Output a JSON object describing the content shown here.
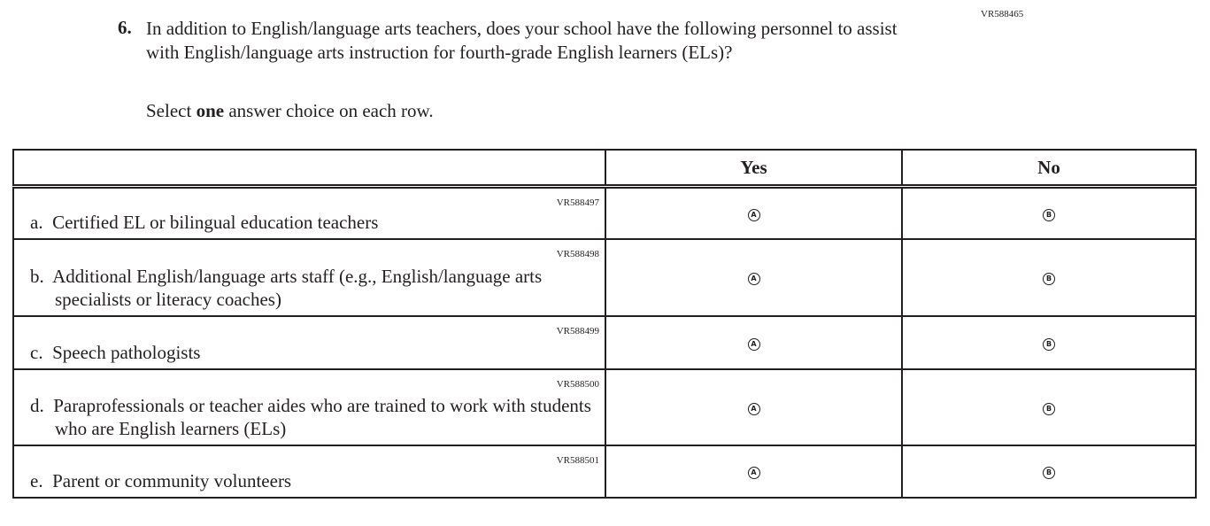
{
  "question": {
    "id": "VR588465",
    "number": "6.",
    "text": "In addition to English/language arts teachers, does your school have the following personnel to assist with English/language arts instruction for fourth-grade English learners (ELs)?",
    "instruction_pre": "Select ",
    "instruction_bold": "one",
    "instruction_post": " answer choice on each row."
  },
  "columns": {
    "yes": "Yes",
    "no": "No"
  },
  "rows": [
    {
      "id": "VR588497",
      "letter": "a.",
      "text": "Certified EL or bilingual education teachers",
      "yes": "A",
      "no": "B"
    },
    {
      "id": "VR588498",
      "letter": "b.",
      "text": "Additional English/language arts staff (e.g., English/language arts specialists or literacy coaches)",
      "yes": "A",
      "no": "B"
    },
    {
      "id": "VR588499",
      "letter": "c.",
      "text": "Speech pathologists",
      "yes": "A",
      "no": "B"
    },
    {
      "id": "VR588500",
      "letter": "d.",
      "text": "Paraprofessionals or teacher aides who are trained to work with students who are English learners (ELs)",
      "yes": "A",
      "no": "B"
    },
    {
      "id": "VR588501",
      "letter": "e.",
      "text": "Parent or community volunteers",
      "yes": "A",
      "no": "B"
    }
  ]
}
